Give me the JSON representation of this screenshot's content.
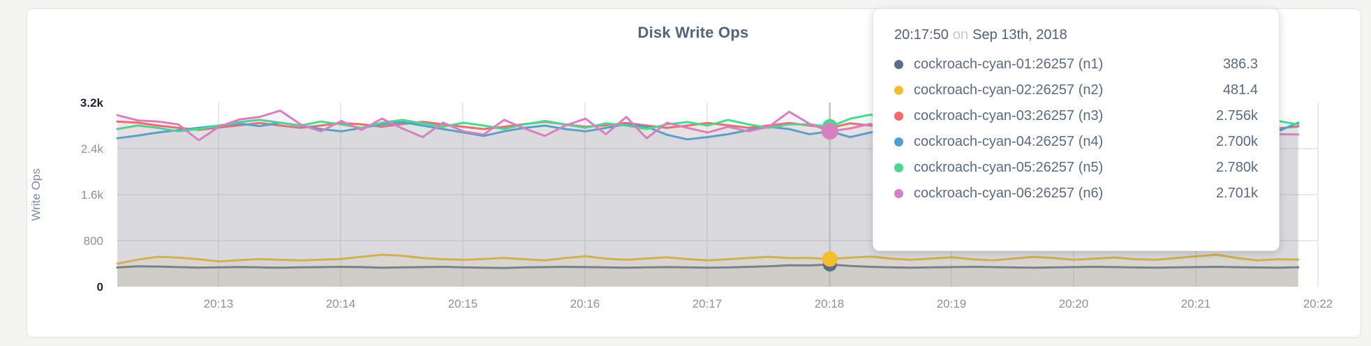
{
  "chart_data": {
    "type": "line",
    "title": "Disk Write Ops",
    "ylabel": "Write Ops",
    "ylim": [
      0,
      3200
    ],
    "grid": true,
    "yticks": [
      {
        "label": "3.2k",
        "value": 3200,
        "emphasis": true
      },
      {
        "label": "2.4k",
        "value": 2400,
        "emphasis": false
      },
      {
        "label": "1.6k",
        "value": 1600,
        "emphasis": false
      },
      {
        "label": "800",
        "value": 800,
        "emphasis": false
      },
      {
        "label": "0",
        "value": 0,
        "emphasis": true
      }
    ],
    "xticks": [
      "20:13",
      "20:14",
      "20:15",
      "20:16",
      "20:17",
      "20:18",
      "20:19",
      "20:20",
      "20:21",
      "20:22"
    ],
    "x_start": "20:12:10",
    "x_step_seconds": 10,
    "hover_index": 35,
    "hover_time": "20:17:50",
    "series": [
      {
        "name": "cockroach-cyan-01:26257 (n1)",
        "node": "n1",
        "color": "#5F6C87",
        "dot_radius": 10,
        "values": [
          335,
          355,
          350,
          340,
          332,
          336,
          342,
          336,
          330,
          336,
          341,
          346,
          340,
          331,
          336,
          341,
          345,
          336,
          330,
          326,
          336,
          341,
          346,
          341,
          336,
          331,
          336,
          341,
          336,
          330,
          335,
          345,
          355,
          372,
          370,
          386.3,
          360,
          345,
          336,
          331,
          336,
          341,
          346,
          340,
          335,
          330,
          336,
          341,
          346,
          340,
          335,
          331,
          336,
          341,
          345,
          339,
          334,
          330,
          338
        ]
      },
      {
        "name": "cockroach-cyan-02:26257 (n2)",
        "node": "n2",
        "color": "#F2BE2C",
        "dot_radius": 11,
        "values": [
          400,
          470,
          520,
          505,
          478,
          440,
          462,
          480,
          468,
          458,
          470,
          482,
          520,
          556,
          538,
          498,
          478,
          468,
          482,
          500,
          478,
          458,
          498,
          528,
          488,
          468,
          490,
          510,
          480,
          458,
          478,
          500,
          520,
          498,
          500,
          481.4,
          505,
          522,
          488,
          468,
          490,
          510,
          478,
          458,
          488,
          518,
          498,
          468,
          488,
          508,
          478,
          468,
          498,
          528,
          556,
          498,
          458,
          478,
          472
        ]
      },
      {
        "name": "cockroach-cyan-03:26257 (n3)",
        "node": "n3",
        "color": "#F16969",
        "dot_radius": 11,
        "values": [
          2870,
          2850,
          2800,
          2760,
          2725,
          2765,
          2805,
          2845,
          2800,
          2760,
          2800,
          2845,
          2820,
          2780,
          2825,
          2865,
          2820,
          2780,
          2740,
          2780,
          2825,
          2865,
          2820,
          2780,
          2805,
          2845,
          2800,
          2760,
          2800,
          2845,
          2805,
          2760,
          2800,
          2845,
          2800,
          2756,
          2840,
          2800,
          2760,
          2800,
          2835,
          2790,
          2750,
          2790,
          2825,
          2780,
          2740,
          2780,
          2815,
          2850,
          3020,
          2780,
          2800,
          2760,
          2790,
          2825,
          2780,
          2750,
          2785
        ]
      },
      {
        "name": "cockroach-cyan-04:26257 (n4)",
        "node": "n4",
        "color": "#4E9FD1",
        "dot_radius": 10,
        "values": [
          2580,
          2625,
          2680,
          2720,
          2760,
          2800,
          2835,
          2790,
          2850,
          2800,
          2740,
          2700,
          2760,
          2820,
          2860,
          2800,
          2740,
          2680,
          2620,
          2700,
          2760,
          2800,
          2740,
          2700,
          2760,
          2820,
          2780,
          2640,
          2560,
          2600,
          2650,
          2720,
          2780,
          2740,
          2650,
          2700,
          2600,
          2680,
          2740,
          2800,
          2760,
          2700,
          2740,
          2790,
          2750,
          2700,
          2660,
          2720,
          2780,
          2740,
          2700,
          2750,
          2800,
          2760,
          2720,
          2680,
          2640,
          2700,
          2850
        ]
      },
      {
        "name": "cockroach-cyan-05:26257 (n5)",
        "node": "n5",
        "color": "#49D990",
        "dot_radius": 11,
        "values": [
          2740,
          2800,
          2760,
          2700,
          2740,
          2800,
          2860,
          2900,
          2850,
          2800,
          2870,
          2820,
          2760,
          2850,
          2900,
          2840,
          2780,
          2850,
          2800,
          2740,
          2820,
          2880,
          2820,
          2760,
          2840,
          2800,
          2740,
          2820,
          2860,
          2800,
          2900,
          2820,
          2760,
          2820,
          2820,
          2780,
          2920,
          2990,
          2850,
          2820,
          2880,
          2800,
          2740,
          2800,
          2860,
          2820,
          2760,
          2840,
          2780,
          2720,
          2800,
          2860,
          2800,
          2740,
          2820,
          2780,
          2840,
          2880,
          2820
        ]
      },
      {
        "name": "cockroach-cyan-06:26257 (n6)",
        "node": "n6",
        "color": "#D77FBF",
        "dot_radius": 12,
        "values": [
          2980,
          2890,
          2870,
          2820,
          2545,
          2780,
          2905,
          2950,
          3060,
          2820,
          2700,
          2880,
          2725,
          2920,
          2750,
          2600,
          2850,
          2700,
          2645,
          2900,
          2750,
          2620,
          2800,
          2920,
          2650,
          2950,
          2580,
          2850,
          2760,
          2680,
          2780,
          2700,
          2780,
          3040,
          2830,
          2701,
          2750,
          2830,
          2600,
          2680,
          2760,
          2710,
          2650,
          2745,
          2830,
          2680,
          2600,
          2720,
          2650,
          2700,
          2760,
          2960,
          2740,
          2620,
          2700,
          2750,
          2820,
          2650,
          2645
        ]
      }
    ]
  },
  "tooltip": {
    "time": "20:17:50",
    "conjunction": "on",
    "date": "Sep 13th, 2018",
    "rows": [
      {
        "label": "cockroach-cyan-01:26257 (n1)",
        "value": "386.3",
        "color": "#5F6C87"
      },
      {
        "label": "cockroach-cyan-02:26257 (n2)",
        "value": "481.4",
        "color": "#F2BE2C"
      },
      {
        "label": "cockroach-cyan-03:26257 (n3)",
        "value": "2.756k",
        "color": "#F16969"
      },
      {
        "label": "cockroach-cyan-04:26257 (n4)",
        "value": "2.700k",
        "color": "#4E9FD1"
      },
      {
        "label": "cockroach-cyan-05:26257 (n5)",
        "value": "2.780k",
        "color": "#49D990"
      },
      {
        "label": "cockroach-cyan-06:26257 (n6)",
        "value": "2.701k",
        "color": "#D77FBF"
      }
    ]
  }
}
